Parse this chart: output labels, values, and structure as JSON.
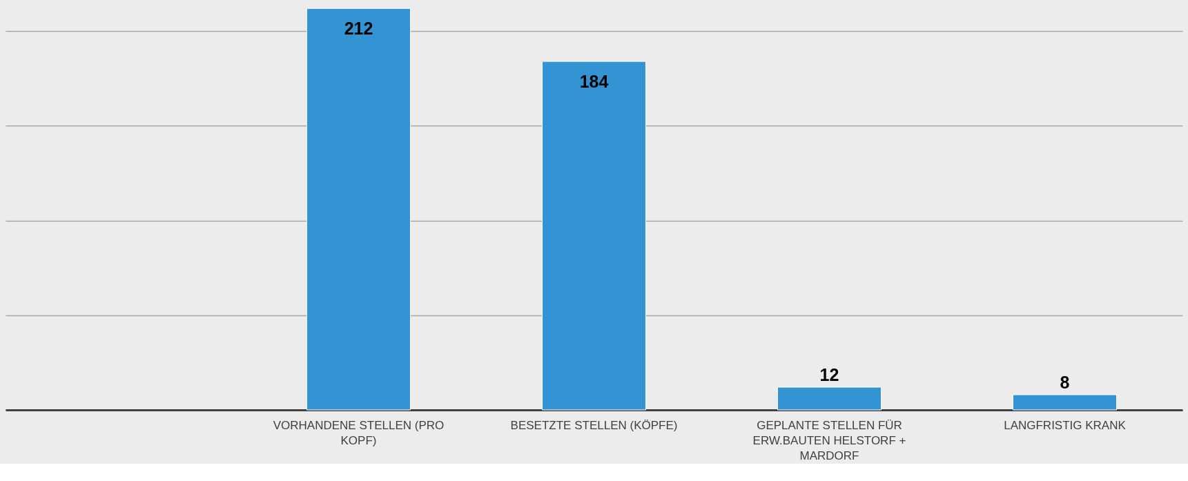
{
  "chart_data": {
    "type": "bar",
    "categories": [
      null,
      "VORHANDENE STELLEN (PRO KOPF)",
      "BESETZTE STELLEN (KÖPFE)",
      "GEPLANTE STELLEN FÜR ERW.BAUTEN HELSTORF + MARDORF",
      "LANGFRISTIG KRANK"
    ],
    "values": [
      null,
      212,
      184,
      12,
      8
    ],
    "color": "#3393d3",
    "ylim": [
      0,
      215
    ],
    "yticks": [
      0,
      50,
      100,
      150,
      200
    ],
    "tick_labels": "x",
    "grid": "y",
    "data_labels": true
  }
}
